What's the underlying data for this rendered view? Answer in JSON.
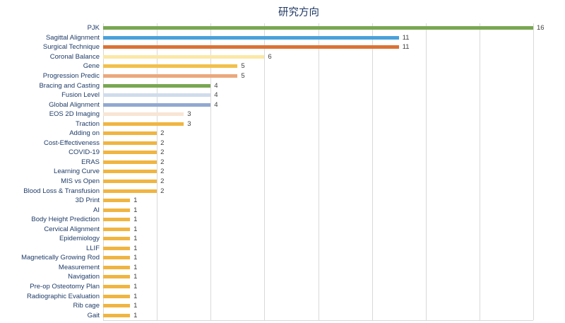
{
  "title": "研究方向",
  "chart_data": {
    "type": "bar",
    "orientation": "horizontal",
    "title": "研究方向",
    "xlabel": "",
    "ylabel": "",
    "xlim": [
      0,
      16
    ],
    "gridline_step": 2,
    "grid": "vertical",
    "value_labels": true,
    "legend": "none",
    "categories": [
      "PJK",
      "Sagittal Alignment",
      "Surgical Technique",
      "Coronal Balance",
      "Gene",
      "Progression Predic",
      "Bracing and Casting",
      "Fusion Level",
      "Global Alignment",
      "EOS 2D Imaging",
      "Traction",
      "Adding on",
      "Cost-Effectiveness",
      "COVID-19",
      "ERAS",
      "Learning Curve",
      "MIS vs Open",
      "Blood Loss & Transfusion",
      "3D Print",
      "AI",
      "Body Height Prediction",
      "Cervical Alignment",
      "Epidemiology",
      "LLIF",
      "Magnetically Growing Rod",
      "Measurement",
      "Navigation",
      "Pre-op Osteotomy Plan",
      "Radiographic Evaluation",
      "Rib cage",
      "Gait"
    ],
    "values": [
      16,
      11,
      11,
      6,
      5,
      5,
      4,
      4,
      4,
      3,
      3,
      2,
      2,
      2,
      2,
      2,
      2,
      2,
      1,
      1,
      1,
      1,
      1,
      1,
      1,
      1,
      1,
      1,
      1,
      1,
      1
    ],
    "bar_colors": [
      "#78A751",
      "#4AA2DA",
      "#DB7235",
      "#FBE8A6",
      "#F2C14C",
      "#EBA87D",
      "#78A751",
      "#D0DCEC",
      "#92A9D1",
      "#F8E5D4",
      "#F0B541",
      "#F0B541",
      "#F0B541",
      "#F0B541",
      "#F0B541",
      "#F0B541",
      "#F0B541",
      "#F0B541",
      "#F0B541",
      "#F0B541",
      "#F0B541",
      "#F0B541",
      "#F0B541",
      "#F0B541",
      "#F0B541",
      "#F0B541",
      "#F0B541",
      "#F0B541",
      "#F0B541",
      "#F0B541",
      "#F0B541"
    ]
  },
  "colors": {
    "title": "#1F3864",
    "category_label": "#1F3C68",
    "value_label": "#404040",
    "gridline": "#D9D9D9",
    "background": "#FFFFFF"
  }
}
